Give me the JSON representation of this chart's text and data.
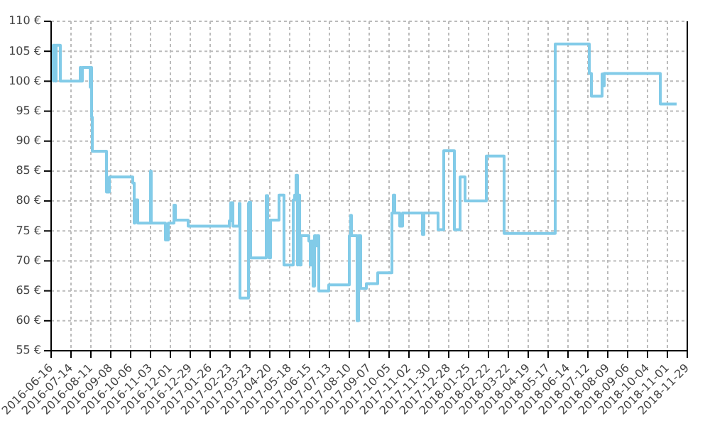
{
  "chart_data": {
    "type": "step",
    "color": "#82cbe8",
    "grid": true,
    "legend": false,
    "marker": "none",
    "line_style": "solid",
    "x": [
      "2016-06-18",
      "2016-06-19",
      "2016-06-22",
      "2016-06-23",
      "2016-06-29",
      "2016-07-27",
      "2016-07-28",
      "2016-07-30",
      "2016-08-10",
      "2016-08-11",
      "2016-08-12",
      "2016-08-13",
      "2016-09-02",
      "2016-09-06",
      "2016-10-09",
      "2016-10-11",
      "2016-10-12",
      "2016-10-16",
      "2016-11-03",
      "2016-11-04",
      "2016-11-24",
      "2016-11-28",
      "2016-12-06",
      "2016-12-08",
      "2016-12-26",
      "2017-02-22",
      "2017-02-24",
      "2017-02-27",
      "2017-03-08",
      "2017-03-09",
      "2017-03-21",
      "2017-03-22",
      "2017-03-24",
      "2017-04-15",
      "2017-04-17",
      "2017-04-19",
      "2017-04-21",
      "2017-05-03",
      "2017-05-10",
      "2017-05-23",
      "2017-05-25",
      "2017-05-27",
      "2017-05-29",
      "2017-05-30",
      "2017-06-01",
      "2017-06-03",
      "2017-06-14",
      "2017-06-16",
      "2017-06-18",
      "2017-06-20",
      "2017-06-22",
      "2017-06-24",
      "2017-06-26",
      "2017-06-28",
      "2017-07-12",
      "2017-08-10",
      "2017-08-12",
      "2017-08-13",
      "2017-08-21",
      "2017-08-23",
      "2017-08-26",
      "2017-09-03",
      "2017-09-19",
      "2017-10-09",
      "2017-10-11",
      "2017-10-13",
      "2017-10-20",
      "2017-10-24",
      "2017-11-21",
      "2017-11-23",
      "2017-12-13",
      "2017-12-21",
      "2018-01-05",
      "2018-01-13",
      "2018-01-20",
      "2018-02-19",
      "2018-03-16",
      "2018-05-27",
      "2018-07-14",
      "2018-07-17",
      "2018-08-01",
      "2018-08-02",
      "2018-08-04",
      "2018-10-22",
      "2018-11-14"
    ],
    "values": [
      100,
      106,
      100,
      106,
      100,
      102.3,
      100,
      102.3,
      99,
      102.3,
      94,
      88.3,
      81.5,
      84,
      83,
      76.3,
      80.2,
      76.3,
      85,
      76.3,
      73.5,
      76.3,
      79.3,
      76.8,
      75.8,
      76.7,
      79.7,
      75.8,
      79.6,
      63.8,
      79.6,
      79.8,
      70.5,
      80.9,
      76.8,
      70.5,
      76.8,
      81,
      69.3,
      80.2,
      81,
      84.3,
      69.3,
      81,
      69.3,
      74.2,
      73.3,
      69.3,
      73.3,
      65.8,
      74.2,
      72.5,
      74.2,
      65,
      66,
      74.2,
      77.6,
      74.2,
      60,
      74.2,
      65.4,
      66.2,
      68,
      78,
      81,
      78,
      75.8,
      78,
      74.4,
      78,
      75.2,
      88.4,
      75.2,
      84,
      80,
      87.5,
      74.6,
      106.2,
      101.3,
      97.5,
      101.2,
      99.2,
      101.3,
      96.2,
      96.2
    ],
    "xlim": [
      "2016-06-16",
      "2018-11-29"
    ],
    "xticks": [
      "2016-06-16",
      "2016-07-14",
      "2016-08-11",
      "2016-09-08",
      "2016-10-06",
      "2016-11-03",
      "2016-12-01",
      "2016-12-29",
      "2017-01-26",
      "2017-02-23",
      "2017-03-23",
      "2017-04-20",
      "2017-05-18",
      "2017-06-15",
      "2017-07-13",
      "2017-08-10",
      "2017-09-07",
      "2017-10-05",
      "2017-11-02",
      "2017-11-30",
      "2017-12-28",
      "2018-01-25",
      "2018-02-22",
      "2018-03-22",
      "2018-04-19",
      "2018-05-17",
      "2018-06-14",
      "2018-07-12",
      "2018-08-09",
      "2018-09-06",
      "2018-10-04",
      "2018-11-01",
      "2018-11-29"
    ],
    "ylim": [
      55,
      110
    ],
    "yticks": [
      {
        "value": 55,
        "label": "55 €"
      },
      {
        "value": 60,
        "label": "60 €"
      },
      {
        "value": 65,
        "label": "65 €"
      },
      {
        "value": 70,
        "label": "70 €"
      },
      {
        "value": 75,
        "label": "75 €"
      },
      {
        "value": 80,
        "label": "80 €"
      },
      {
        "value": 85,
        "label": "85 €"
      },
      {
        "value": 90,
        "label": "90 €"
      },
      {
        "value": 95,
        "label": "95 €"
      },
      {
        "value": 100,
        "label": "100 €"
      },
      {
        "value": 105,
        "label": "105 €"
      },
      {
        "value": 110,
        "label": "110 €"
      }
    ]
  }
}
